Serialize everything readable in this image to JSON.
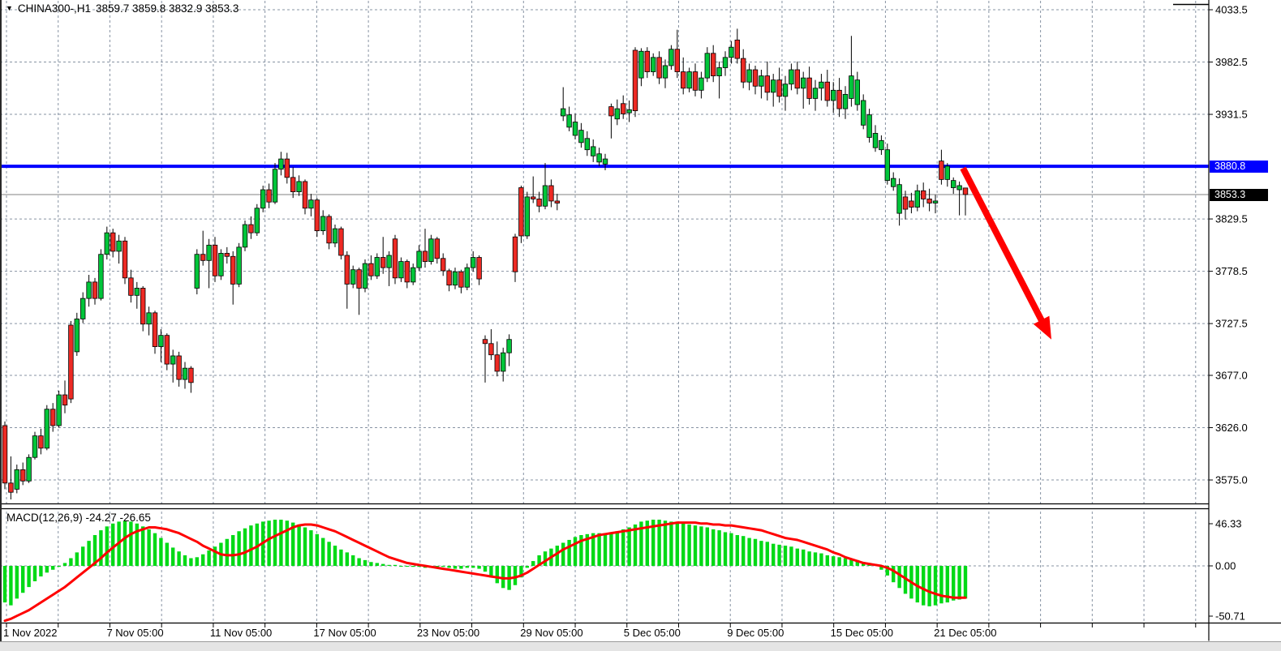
{
  "header": {
    "symbol_period": "CHINA300-,H1",
    "ohlc": "3859.7 3859.8 3832.9 3853.3",
    "marker_icon": "▼"
  },
  "price_axis": {
    "labels": [
      "4033.5",
      "3982.5",
      "3931.5",
      "3829.5",
      "3778.5",
      "3727.5",
      "3677.0",
      "3626.0",
      "3575.0"
    ],
    "gridline_prices": [
      4033.5,
      3982.5,
      3931.5,
      3829.5,
      3778.5,
      3727.5,
      3677.0,
      3626.0,
      3575.0
    ],
    "hline_label": "3880.8",
    "current_label": "3853.3"
  },
  "time_axis": {
    "labels": [
      "1 Nov 2022",
      "7 Nov 05:00",
      "11 Nov 05:00",
      "17 Nov 05:00",
      "23 Nov 05:00",
      "29 Nov 05:00",
      "5 Dec 05:00",
      "9 Dec 05:00",
      "15 Dec 05:00",
      "21 Dec 05:00"
    ]
  },
  "macd_panel": {
    "label": "MACD(12,26,9) -24.27 -26.65",
    "scale_top": "46.33",
    "scale_zero": "0.00",
    "scale_bottom": "-50.71"
  },
  "colors": {
    "bull": "#00c53a",
    "bear": "#ed2a24",
    "wick": "#000000",
    "hist": "#00d916",
    "signal": "#ff0000",
    "hline": "#0000ff",
    "current_line": "#808080",
    "grid": "#8793a3",
    "arrow": "#ff0000",
    "tag_blue": "#0000ff",
    "tag_black": "#000000"
  },
  "chart_data": [
    {
      "type": "candlestick",
      "title": "CHINA300-,H1",
      "symbol": "CHINA300-",
      "timeframe": "H1",
      "last_ohlc": {
        "open": 3859.7,
        "high": 3859.8,
        "low": 3832.9,
        "close": 3853.3
      },
      "ylim": [
        3550,
        4045
      ],
      "hline": 3880.8,
      "current_price": 3853.3,
      "arrow": {
        "direction": "down",
        "from_price": 3879,
        "to_price": 3712
      },
      "candles": [
        [
          3628,
          3632,
          3566,
          3572
        ],
        [
          3572,
          3598,
          3556,
          3563
        ],
        [
          3566,
          3590,
          3562,
          3585
        ],
        [
          3585,
          3592,
          3570,
          3574
        ],
        [
          3574,
          3600,
          3572,
          3597
        ],
        [
          3597,
          3622,
          3595,
          3618
        ],
        [
          3618,
          3625,
          3600,
          3606
        ],
        [
          3606,
          3648,
          3604,
          3644
        ],
        [
          3644,
          3650,
          3622,
          3628
        ],
        [
          3628,
          3662,
          3626,
          3658
        ],
        [
          3658,
          3672,
          3640,
          3648
        ],
        [
          3726,
          3730,
          3650,
          3654
        ],
        [
          3700,
          3738,
          3696,
          3732
        ],
        [
          3732,
          3758,
          3728,
          3752
        ],
        [
          3752,
          3775,
          3744,
          3768
        ],
        [
          3768,
          3772,
          3746,
          3752
        ],
        [
          3752,
          3800,
          3750,
          3795
        ],
        [
          3795,
          3822,
          3790,
          3816
        ],
        [
          3816,
          3820,
          3792,
          3798
        ],
        [
          3798,
          3814,
          3786,
          3808
        ],
        [
          3808,
          3812,
          3766,
          3772
        ],
        [
          3772,
          3780,
          3748,
          3755
        ],
        [
          3755,
          3768,
          3742,
          3762
        ],
        [
          3762,
          3764,
          3720,
          3727
        ],
        [
          3727,
          3744,
          3716,
          3738
        ],
        [
          3738,
          3740,
          3698,
          3705
        ],
        [
          3705,
          3722,
          3690,
          3716
        ],
        [
          3716,
          3718,
          3682,
          3688
        ],
        [
          3688,
          3702,
          3670,
          3696
        ],
        [
          3696,
          3700,
          3666,
          3673
        ],
        [
          3673,
          3690,
          3664,
          3684
        ],
        [
          3684,
          3686,
          3660,
          3670
        ],
        [
          3762,
          3800,
          3756,
          3795
        ],
        [
          3795,
          3818,
          3784,
          3789
        ],
        [
          3789,
          3810,
          3762,
          3804
        ],
        [
          3804,
          3812,
          3768,
          3774
        ],
        [
          3774,
          3800,
          3770,
          3796
        ],
        [
          3796,
          3802,
          3786,
          3793
        ],
        [
          3793,
          3798,
          3746,
          3766
        ],
        [
          3766,
          3806,
          3763,
          3802
        ],
        [
          3802,
          3828,
          3798,
          3824
        ],
        [
          3824,
          3832,
          3810,
          3816
        ],
        [
          3816,
          3844,
          3813,
          3840
        ],
        [
          3840,
          3862,
          3836,
          3858
        ],
        [
          3858,
          3864,
          3840,
          3846
        ],
        [
          3846,
          3884,
          3844,
          3878
        ],
        [
          3878,
          3895,
          3872,
          3888
        ],
        [
          3888,
          3894,
          3864,
          3870
        ],
        [
          3870,
          3880,
          3850,
          3856
        ],
        [
          3856,
          3872,
          3852,
          3866
        ],
        [
          3866,
          3868,
          3834,
          3840
        ],
        [
          3840,
          3854,
          3832,
          3848
        ],
        [
          3848,
          3850,
          3812,
          3818
        ],
        [
          3818,
          3838,
          3814,
          3832
        ],
        [
          3832,
          3834,
          3800,
          3806
        ],
        [
          3806,
          3824,
          3802,
          3820
        ],
        [
          3820,
          3822,
          3790,
          3794
        ],
        [
          3794,
          3798,
          3742,
          3766
        ],
        [
          3766,
          3784,
          3762,
          3780
        ],
        [
          3780,
          3782,
          3736,
          3762
        ],
        [
          3762,
          3790,
          3758,
          3786
        ],
        [
          3786,
          3794,
          3770,
          3774
        ],
        [
          3774,
          3796,
          3771,
          3792
        ],
        [
          3792,
          3812,
          3776,
          3782
        ],
        [
          3782,
          3798,
          3764,
          3794
        ],
        [
          3810,
          3814,
          3766,
          3772
        ],
        [
          3772,
          3792,
          3768,
          3788
        ],
        [
          3788,
          3790,
          3762,
          3768
        ],
        [
          3768,
          3786,
          3765,
          3782
        ],
        [
          3782,
          3804,
          3779,
          3798
        ],
        [
          3798,
          3820,
          3782,
          3788
        ],
        [
          3788,
          3814,
          3785,
          3810
        ],
        [
          3810,
          3812,
          3786,
          3791
        ],
        [
          3791,
          3796,
          3774,
          3779
        ],
        [
          3779,
          3781,
          3759,
          3765
        ],
        [
          3765,
          3782,
          3761,
          3778
        ],
        [
          3778,
          3780,
          3757,
          3763
        ],
        [
          3763,
          3786,
          3760,
          3782
        ],
        [
          3782,
          3798,
          3778,
          3792
        ],
        [
          3792,
          3794,
          3765,
          3771
        ],
        [
          3712,
          3716,
          3670,
          3708
        ],
        [
          3708,
          3722,
          3692,
          3697
        ],
        [
          3697,
          3710,
          3676,
          3681
        ],
        [
          3681,
          3704,
          3671,
          3699
        ],
        [
          3699,
          3717,
          3686,
          3712
        ],
        [
          3812,
          3815,
          3768,
          3778
        ],
        [
          3860,
          3862,
          3806,
          3813
        ],
        [
          3813,
          3856,
          3810,
          3851
        ],
        [
          3851,
          3871,
          3845,
          3849
        ],
        [
          3849,
          3856,
          3836,
          3842
        ],
        [
          3842,
          3884,
          3839,
          3862
        ],
        [
          3862,
          3868,
          3841,
          3847
        ],
        [
          3847,
          3854,
          3838,
          3845
        ],
        [
          3930,
          3958,
          3925,
          3937
        ],
        [
          3919,
          3939,
          3915,
          3931
        ],
        [
          3911,
          3932,
          3907,
          3924
        ],
        [
          3904,
          3923,
          3899,
          3916
        ],
        [
          3897,
          3915,
          3891,
          3908
        ],
        [
          3891,
          3907,
          3885,
          3900
        ],
        [
          3885,
          3899,
          3881,
          3893
        ],
        [
          3883,
          3893,
          3877,
          3888
        ],
        [
          3939,
          3942,
          3908,
          3930
        ],
        [
          3927,
          3946,
          3921,
          3937
        ],
        [
          3942,
          3950,
          3927,
          3932
        ],
        [
          3933,
          3945,
          3924,
          3936
        ],
        [
          3994,
          3997,
          3929,
          3935
        ],
        [
          3967,
          3996,
          3959,
          3993
        ],
        [
          3993,
          3997,
          3967,
          3973
        ],
        [
          3973,
          3991,
          3969,
          3987
        ],
        [
          3987,
          3993,
          3961,
          3967
        ],
        [
          3967,
          3985,
          3957,
          3979
        ],
        [
          3979,
          3999,
          3975,
          3995
        ],
        [
          3995,
          4014,
          3967,
          3973
        ],
        [
          3973,
          3987,
          3951,
          3957
        ],
        [
          3957,
          3977,
          3953,
          3973
        ],
        [
          3973,
          3981,
          3949,
          3955
        ],
        [
          3955,
          3973,
          3947,
          3967
        ],
        [
          3967,
          3997,
          3963,
          3991
        ],
        [
          3991,
          3999,
          3963,
          3969
        ],
        [
          3969,
          3983,
          3947,
          3977
        ],
        [
          3977,
          3993,
          3969,
          3987
        ],
        [
          3987,
          4003,
          3981,
          3997
        ],
        [
          4004,
          4015,
          3981,
          3986
        ],
        [
          3986,
          3995,
          3957,
          3963
        ],
        [
          3963,
          3981,
          3955,
          3975
        ],
        [
          3975,
          3979,
          3951,
          3959
        ],
        [
          3959,
          3975,
          3947,
          3969
        ],
        [
          3969,
          3983,
          3945,
          3953
        ],
        [
          3953,
          3971,
          3939,
          3965
        ],
        [
          3965,
          3977,
          3943,
          3949
        ],
        [
          3949,
          3969,
          3935,
          3961
        ],
        [
          3961,
          3981,
          3955,
          3975
        ],
        [
          3975,
          3983,
          3951,
          3957
        ],
        [
          3957,
          3973,
          3937,
          3967
        ],
        [
          3967,
          3978,
          3941,
          3947
        ],
        [
          3947,
          3965,
          3935,
          3957
        ],
        [
          3957,
          3971,
          3945,
          3963
        ],
        [
          3963,
          3975,
          3939,
          3945
        ],
        [
          3945,
          3963,
          3933,
          3955
        ],
        [
          3955,
          3967,
          3929,
          3937
        ],
        [
          3937,
          3959,
          3927,
          3951
        ],
        [
          3947,
          4008,
          3939,
          3969
        ],
        [
          3941,
          3973,
          3935,
          3965
        ],
        [
          3921,
          3951,
          3917,
          3945
        ],
        [
          3909,
          3937,
          3904,
          3931
        ],
        [
          3899,
          3921,
          3895,
          3913
        ],
        [
          3897,
          3911,
          3892,
          3906
        ],
        [
          3867,
          3903,
          3863,
          3897
        ],
        [
          3861,
          3875,
          3857,
          3869
        ],
        [
          3835,
          3869,
          3823,
          3863
        ],
        [
          3851,
          3857,
          3829,
          3839
        ],
        [
          3847,
          3855,
          3835,
          3841
        ],
        [
          3841,
          3863,
          3837,
          3857
        ],
        [
          3857,
          3865,
          3841,
          3849
        ],
        [
          3849,
          3859,
          3837,
          3845
        ],
        [
          3845,
          3853,
          3835,
          3847
        ],
        [
          3886,
          3897,
          3863,
          3868
        ],
        [
          3868,
          3884,
          3861,
          3881
        ],
        [
          3860,
          3870,
          3854,
          3867
        ],
        [
          3858,
          3866,
          3833,
          3862
        ],
        [
          3859.7,
          3859.8,
          3832.9,
          3853.3
        ]
      ]
    },
    {
      "type": "macd",
      "params": "12,26,9",
      "current_values": {
        "macd": -24.27,
        "signal": -26.65
      },
      "ylim": [
        -50.71,
        46.33
      ],
      "histogram": [
        -38,
        -41,
        -34,
        -28,
        -22,
        -16,
        -11,
        -7,
        -4,
        -1,
        3,
        8,
        14,
        20,
        26,
        32,
        37,
        41,
        44,
        46,
        47,
        46,
        44,
        41,
        38,
        34,
        29,
        24,
        19,
        15,
        11,
        8,
        9,
        12,
        16,
        20,
        24,
        28,
        32,
        36,
        39,
        42,
        44,
        46,
        47,
        48,
        48,
        47,
        45,
        43,
        40,
        37,
        33,
        29,
        25,
        21,
        17,
        14,
        11,
        8,
        6,
        4,
        3,
        2,
        1,
        1,
        0,
        0,
        -1,
        -1,
        -2,
        -2,
        -1,
        -1,
        -2,
        -3,
        -3,
        -2,
        -2,
        -3,
        -6,
        -12,
        -18,
        -23,
        -25,
        -20,
        -12,
        -2,
        5,
        11,
        15,
        18,
        21,
        24,
        27,
        30,
        32,
        33,
        34,
        34,
        34,
        35,
        36,
        38,
        40,
        43,
        46,
        47,
        48,
        48,
        47,
        46,
        45,
        44,
        43,
        42,
        41,
        40,
        38,
        37,
        35,
        34,
        32,
        31,
        29,
        28,
        26,
        25,
        23,
        22,
        21,
        20,
        18,
        17,
        15,
        14,
        13,
        11,
        10,
        9,
        8,
        7,
        6,
        4,
        3,
        2,
        -4,
        -10,
        -17,
        -23,
        -29,
        -34,
        -38,
        -41,
        -42,
        -41,
        -39,
        -38,
        -36,
        -35,
        -34
      ],
      "signal_line": [
        -57,
        -55,
        -52,
        -49,
        -46,
        -42,
        -38,
        -34,
        -30,
        -26,
        -22,
        -17,
        -12,
        -7,
        -2,
        3,
        8,
        14,
        19,
        24,
        29,
        33,
        36,
        38,
        40,
        40,
        39,
        38,
        36,
        34,
        31,
        28,
        25,
        21,
        18,
        15,
        12,
        11,
        11,
        12,
        14,
        17,
        20,
        24,
        28,
        31,
        34,
        37,
        40,
        42,
        43,
        43,
        42,
        40,
        38,
        36,
        33,
        30,
        27,
        24,
        21,
        18,
        15,
        12,
        9,
        7,
        5,
        3,
        2,
        1,
        0,
        -1,
        -2,
        -3,
        -4,
        -5,
        -6,
        -7,
        -8,
        -9,
        -10,
        -11,
        -12,
        -13,
        -13,
        -12,
        -10,
        -7,
        -3,
        1,
        5,
        9,
        13,
        17,
        20,
        23,
        26,
        28,
        30,
        32,
        33,
        34,
        35,
        36,
        37,
        38,
        39,
        40,
        41,
        42,
        43,
        44,
        45,
        45,
        45,
        45,
        44,
        44,
        43,
        43,
        42,
        42,
        41,
        40,
        39,
        38,
        37,
        35,
        33,
        31,
        29,
        28,
        27,
        25,
        23,
        21,
        19,
        17,
        14,
        12,
        9,
        7,
        5,
        3,
        2,
        1,
        0,
        -2,
        -5,
        -9,
        -13,
        -17,
        -21,
        -24,
        -27,
        -29,
        -31,
        -32,
        -33,
        -33,
        -33
      ]
    }
  ]
}
